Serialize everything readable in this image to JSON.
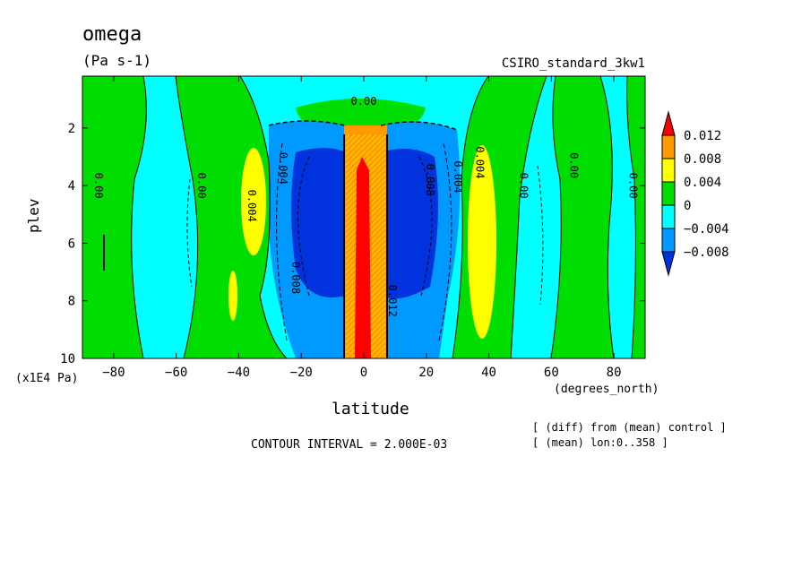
{
  "chart_data": {
    "type": "heatmap",
    "title": "omega",
    "units": "(Pa s-1)",
    "dataset": "CSIRO_standard_3kw1",
    "xlabel": "latitude",
    "x_units": "(degrees_north)",
    "ylabel": "plev",
    "y_units": "(x1E4 Pa)",
    "xlim": [
      -90,
      90
    ],
    "ylim": [
      10,
      0.2
    ],
    "x_ticks": [
      -80,
      -60,
      -40,
      -20,
      0,
      20,
      40,
      60,
      80
    ],
    "y_ticks": [
      2,
      4,
      6,
      8,
      10
    ],
    "contour_interval": "CONTOUR INTERVAL = 2.000E-03",
    "notes": [
      "[ (diff) from (mean) control ]",
      "[ (mean) lon:0..358 ]"
    ],
    "legend": {
      "placement": "right",
      "labels": [
        "0.012",
        "0.008",
        "0.004",
        "0",
        "−0.004",
        "−0.008"
      ],
      "colors": [
        "#ff0000",
        "#ff9900",
        "#ffff00",
        "#00dd00",
        "#00ffff",
        "#0099ff",
        "#0033dd"
      ]
    },
    "contour_labels": [
      {
        "text": "0.00",
        "lat": 0,
        "plev": 1.2
      },
      {
        "text": "0.00",
        "lat": -86,
        "plev": 4.0
      },
      {
        "text": "0.00",
        "lat": -53,
        "plev": 4.0
      },
      {
        "text": "0.004",
        "lat": -37,
        "plev": 4.7
      },
      {
        "text": "0.004",
        "lat": -27,
        "plev": 3.4
      },
      {
        "text": "0.008",
        "lat": -23,
        "plev": 7.2
      },
      {
        "text": "0.012",
        "lat": 8,
        "plev": 8.0
      },
      {
        "text": "0.008",
        "lat": 20,
        "plev": 3.8
      },
      {
        "text": "0.004",
        "lat": 29,
        "plev": 3.7
      },
      {
        "text": "0.004",
        "lat": 36,
        "plev": 3.2
      },
      {
        "text": "0.00",
        "lat": 50,
        "plev": 4.0
      },
      {
        "text": "0.00",
        "lat": 66,
        "plev": 3.3
      },
      {
        "text": "0.00",
        "lat": 85,
        "plev": 4.0
      }
    ]
  }
}
